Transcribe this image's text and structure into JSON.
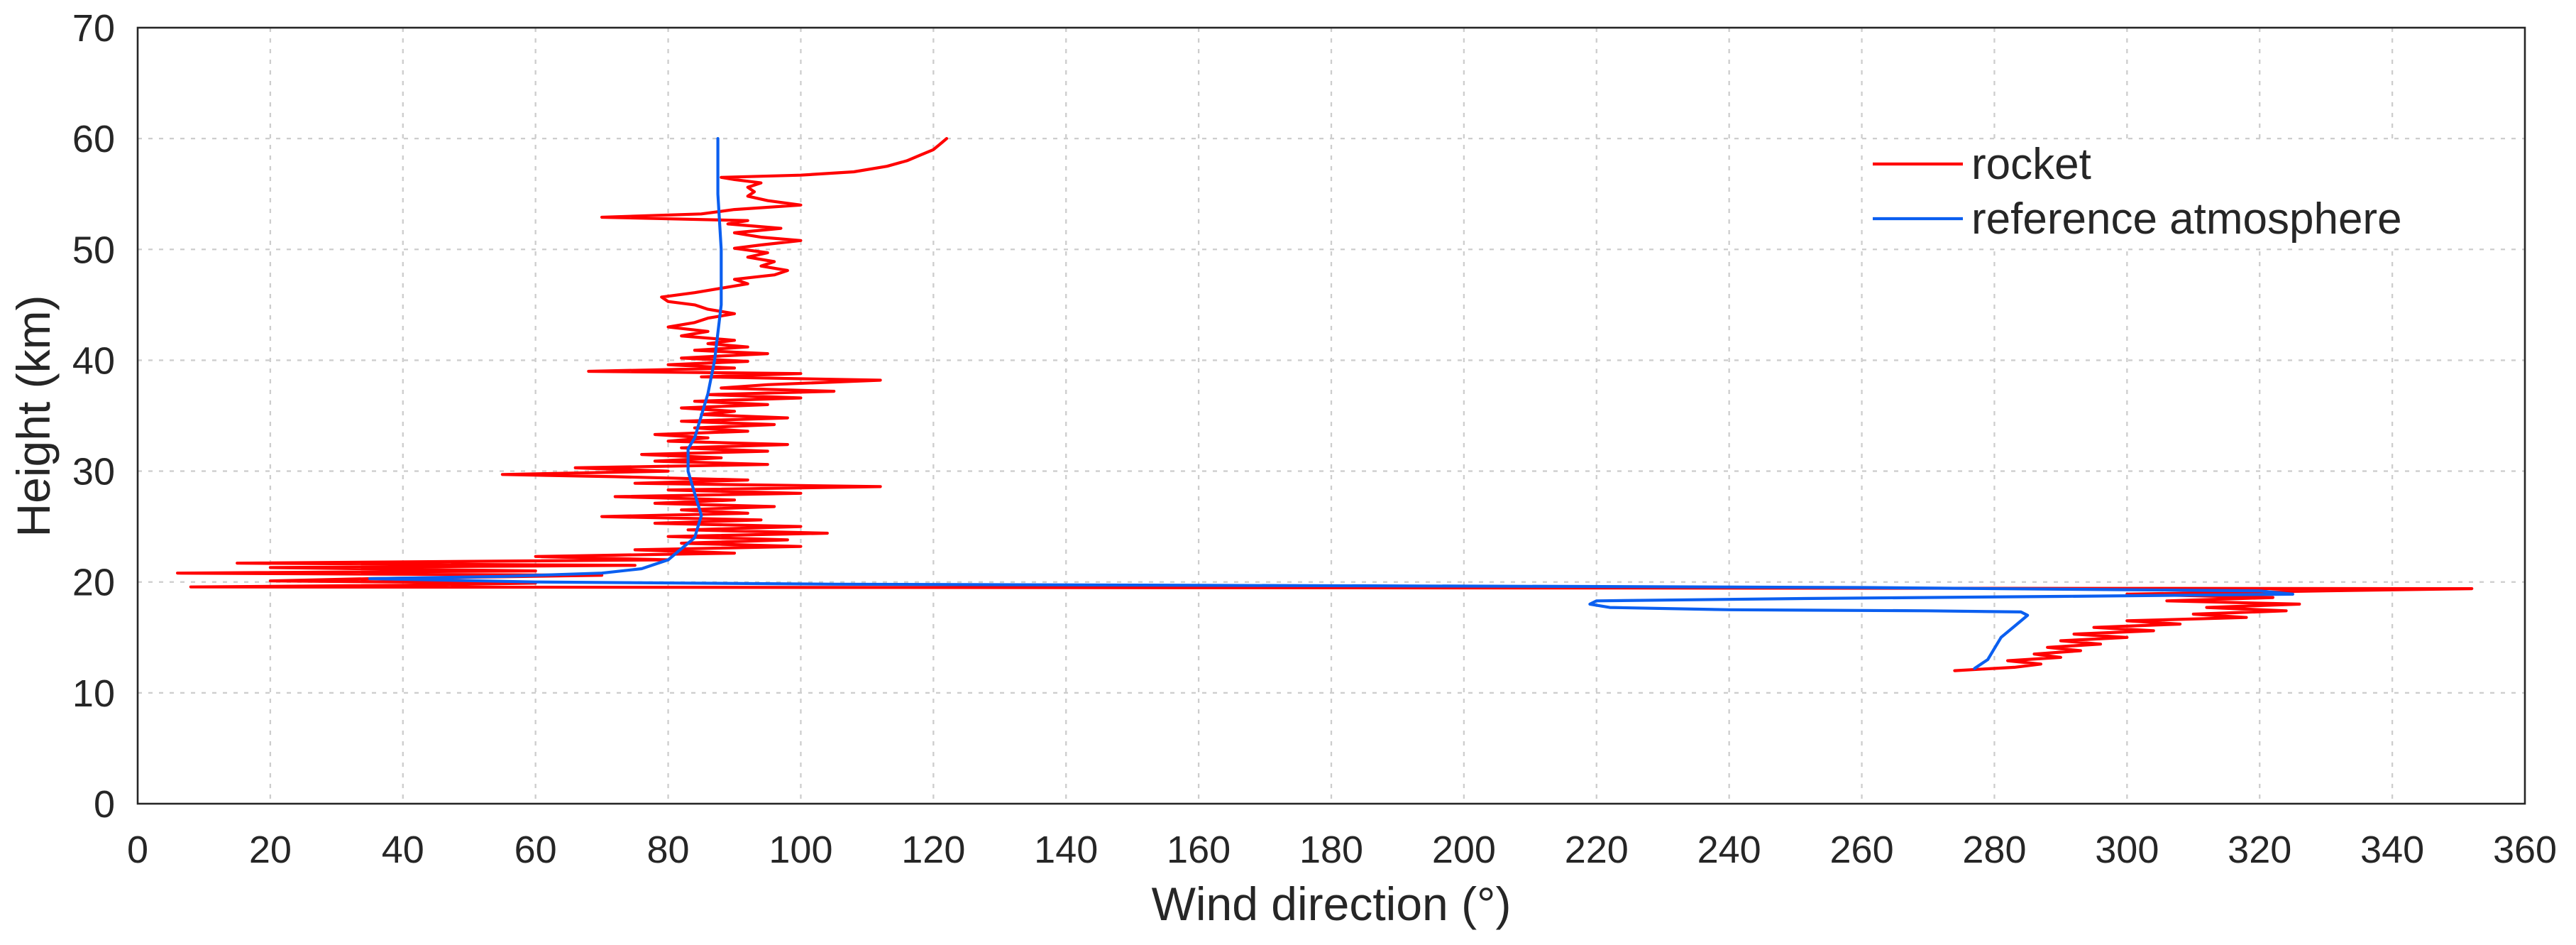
{
  "chart_data": {
    "type": "line",
    "xlabel": "Wind direction (°)",
    "ylabel": "Height (km)",
    "xlim": [
      0,
      360
    ],
    "ylim": [
      0,
      70
    ],
    "x_ticks": [
      0,
      20,
      40,
      60,
      80,
      100,
      120,
      140,
      160,
      180,
      200,
      220,
      240,
      260,
      280,
      300,
      320,
      340,
      360
    ],
    "y_ticks": [
      0,
      10,
      20,
      30,
      40,
      50,
      60,
      70
    ],
    "grid": true,
    "legend_position": "top-right",
    "series": [
      {
        "name": "rocket",
        "color": "#ff0000",
        "x": [
          274,
          283,
          287,
          282,
          290,
          286,
          293,
          288,
          296,
          290,
          300,
          292,
          304,
          295,
          308,
          300,
          318,
          310,
          324,
          312,
          326,
          306,
          322,
          300,
          330,
          352,
          8,
          40,
          60,
          20,
          35,
          70,
          6,
          60,
          20,
          75,
          15,
          80,
          60,
          90,
          75,
          100,
          82,
          98,
          80,
          104,
          83,
          100,
          78,
          94,
          70,
          92,
          82,
          96,
          78,
          90,
          72,
          100,
          80,
          112,
          75,
          92,
          72,
          55,
          80,
          66,
          95,
          78,
          88,
          76,
          95,
          82,
          98,
          80,
          86,
          78,
          92,
          84,
          96,
          82,
          98,
          85,
          90,
          82,
          95,
          84,
          100,
          86,
          105,
          88,
          95,
          112,
          85,
          100,
          68,
          90,
          80,
          92,
          82,
          95,
          84,
          92,
          86,
          90,
          82,
          86,
          80,
          84,
          86,
          90,
          86,
          84,
          80,
          79,
          84,
          88,
          92,
          90,
          96,
          98,
          94,
          96,
          92,
          95,
          90,
          94,
          100,
          94,
          90,
          97,
          89,
          92,
          70,
          85,
          90,
          100,
          95,
          92,
          93,
          92,
          94,
          90,
          88,
          100,
          108,
          113,
          116,
          118,
          120,
          121,
          122
        ],
        "y": [
          12.0,
          12.3,
          12.6,
          12.9,
          13.2,
          13.5,
          13.8,
          14.1,
          14.4,
          14.7,
          15.0,
          15.3,
          15.6,
          15.9,
          16.2,
          16.5,
          16.8,
          17.1,
          17.4,
          17.7,
          18.0,
          18.3,
          18.6,
          18.9,
          19.2,
          19.4,
          19.55,
          19.7,
          19.9,
          20.1,
          20.3,
          20.6,
          20.8,
          21.0,
          21.3,
          21.5,
          21.7,
          22.0,
          22.3,
          22.6,
          22.9,
          23.2,
          23.5,
          23.8,
          24.1,
          24.4,
          24.7,
          25.0,
          25.3,
          25.6,
          25.9,
          26.2,
          26.5,
          26.8,
          27.1,
          27.4,
          27.7,
          28.0,
          28.3,
          28.6,
          28.9,
          29.2,
          29.5,
          29.7,
          30.0,
          30.3,
          30.6,
          30.9,
          31.2,
          31.5,
          31.8,
          32.1,
          32.4,
          32.7,
          33.0,
          33.3,
          33.6,
          33.9,
          34.2,
          34.5,
          34.8,
          35.1,
          35.4,
          35.7,
          36.0,
          36.3,
          36.6,
          36.9,
          37.2,
          37.5,
          37.8,
          38.2,
          38.5,
          38.8,
          39.0,
          39.3,
          39.6,
          39.9,
          40.2,
          40.6,
          40.9,
          41.2,
          41.5,
          41.8,
          42.2,
          42.6,
          43.0,
          43.4,
          43.8,
          44.2,
          44.6,
          45.0,
          45.3,
          45.7,
          46.1,
          46.5,
          46.9,
          47.3,
          47.7,
          48.1,
          48.5,
          48.9,
          49.3,
          49.7,
          50.1,
          50.4,
          50.8,
          51.1,
          51.5,
          51.9,
          52.3,
          52.6,
          52.9,
          53.2,
          53.6,
          54.0,
          54.4,
          54.8,
          55.2,
          55.6,
          56.0,
          56.3,
          56.5,
          56.7,
          57.0,
          57.5,
          58.0,
          58.5,
          59.0,
          59.5,
          60.0
        ]
      },
      {
        "name": "reference atmosphere",
        "color": "#0b5ff0",
        "x": [
          277,
          279,
          280,
          281,
          283,
          285,
          284,
          270,
          240,
          222,
          219,
          220,
          250,
          290,
          325,
          320,
          300,
          260,
          218,
          160,
          105,
          60,
          35,
          55,
          70,
          76,
          80,
          82,
          84,
          85,
          84,
          83,
          83,
          84,
          85,
          86,
          87,
          88,
          88,
          87.5,
          87.5
        ],
        "y": [
          12.2,
          13,
          14,
          15,
          16,
          17,
          17.3,
          17.4,
          17.5,
          17.7,
          18.0,
          18.3,
          18.5,
          18.7,
          18.9,
          19.2,
          19.3,
          19.5,
          19.6,
          19.7,
          19.8,
          20.0,
          20.3,
          20.5,
          20.8,
          21.2,
          22,
          23,
          24,
          26,
          28,
          30,
          32,
          33,
          35,
          37,
          40,
          45,
          50,
          55,
          60
        ]
      }
    ]
  }
}
